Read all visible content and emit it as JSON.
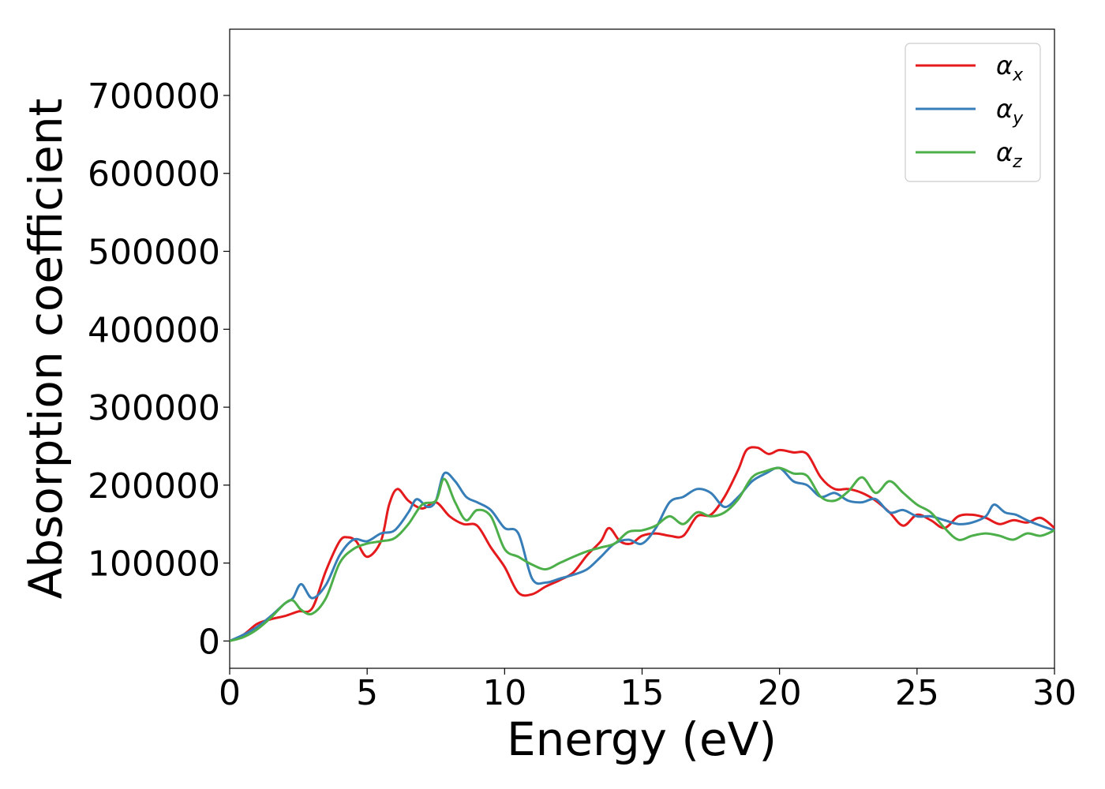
{
  "chart_data": {
    "type": "line",
    "title": "",
    "xlabel": "Energy (eV)",
    "ylabel": "Absorption coefficient",
    "xlim": [
      0,
      30
    ],
    "ylim": [
      -35000,
      785000
    ],
    "xticks": [
      0,
      5,
      10,
      15,
      20,
      25,
      30
    ],
    "xtick_labels": [
      "0",
      "5",
      "10",
      "15",
      "20",
      "25",
      "30"
    ],
    "yticks": [
      0,
      100000,
      200000,
      300000,
      400000,
      500000,
      600000,
      700000
    ],
    "ytick_labels": [
      "0",
      "100000",
      "200000",
      "300000",
      "400000",
      "500000",
      "600000",
      "700000"
    ],
    "grid": false,
    "legend_position": "top-right",
    "series": [
      {
        "name": "α",
        "subscript": "x",
        "color": "#e41a1c",
        "x": [
          0,
          0.5,
          1.0,
          1.5,
          2.0,
          2.5,
          3.0,
          3.5,
          4.0,
          4.3,
          4.6,
          5.0,
          5.5,
          5.8,
          6.1,
          6.5,
          7.0,
          7.5,
          8.0,
          8.5,
          9.0,
          9.5,
          10.0,
          10.5,
          11.0,
          11.5,
          12.0,
          12.5,
          13.0,
          13.5,
          13.8,
          14.2,
          14.6,
          15.0,
          15.5,
          16.0,
          16.5,
          17.0,
          17.5,
          18.0,
          18.5,
          18.8,
          19.2,
          19.6,
          20.0,
          20.5,
          21.0,
          21.5,
          22.0,
          22.5,
          23.0,
          23.5,
          24.0,
          24.5,
          25.0,
          25.5,
          26.0,
          26.5,
          27.0,
          27.5,
          28.0,
          28.5,
          29.0,
          29.5,
          30.0
        ],
        "y": [
          0,
          8000,
          22000,
          28000,
          32000,
          38000,
          42000,
          90000,
          128000,
          133000,
          128000,
          108000,
          128000,
          175000,
          195000,
          180000,
          170000,
          178000,
          160000,
          150000,
          148000,
          120000,
          95000,
          62000,
          60000,
          70000,
          78000,
          88000,
          110000,
          128000,
          145000,
          128000,
          125000,
          135000,
          138000,
          135000,
          135000,
          160000,
          162000,
          185000,
          220000,
          245000,
          248000,
          240000,
          245000,
          242000,
          240000,
          210000,
          195000,
          195000,
          190000,
          180000,
          165000,
          148000,
          162000,
          155000,
          145000,
          160000,
          162000,
          158000,
          150000,
          155000,
          152000,
          158000,
          145000
        ]
      },
      {
        "name": "α",
        "subscript": "y",
        "color": "#377eb8",
        "x": [
          0,
          0.5,
          1.0,
          1.5,
          2.0,
          2.3,
          2.6,
          3.0,
          3.5,
          4.0,
          4.5,
          5.0,
          5.5,
          6.0,
          6.5,
          6.8,
          7.2,
          7.5,
          7.8,
          8.2,
          8.6,
          9.0,
          9.5,
          10.0,
          10.5,
          11.0,
          11.5,
          12.0,
          12.5,
          13.0,
          13.5,
          14.0,
          14.5,
          15.0,
          15.5,
          16.0,
          16.5,
          17.0,
          17.5,
          18.0,
          18.5,
          19.0,
          19.5,
          20.0,
          20.5,
          21.0,
          21.5,
          22.0,
          22.5,
          23.0,
          23.5,
          24.0,
          24.5,
          25.0,
          25.5,
          26.0,
          26.5,
          27.0,
          27.5,
          27.8,
          28.2,
          28.6,
          29.0,
          29.5,
          30.0
        ],
        "y": [
          0,
          8000,
          18000,
          32000,
          48000,
          55000,
          73000,
          55000,
          72000,
          110000,
          130000,
          128000,
          138000,
          142000,
          165000,
          182000,
          172000,
          180000,
          215000,
          205000,
          185000,
          178000,
          168000,
          145000,
          138000,
          80000,
          75000,
          80000,
          85000,
          92000,
          108000,
          125000,
          130000,
          125000,
          145000,
          178000,
          185000,
          195000,
          190000,
          172000,
          185000,
          205000,
          215000,
          222000,
          205000,
          200000,
          185000,
          190000,
          180000,
          178000,
          182000,
          165000,
          168000,
          160000,
          160000,
          155000,
          150000,
          152000,
          160000,
          175000,
          165000,
          162000,
          155000,
          148000,
          142000
        ]
      },
      {
        "name": "α",
        "subscript": "z",
        "color": "#4daf4a",
        "x": [
          0,
          0.5,
          1.0,
          1.5,
          2.0,
          2.3,
          2.6,
          3.0,
          3.5,
          4.0,
          4.5,
          5.0,
          5.5,
          6.0,
          6.5,
          7.0,
          7.5,
          7.8,
          8.2,
          8.6,
          9.0,
          9.5,
          10.0,
          10.5,
          11.0,
          11.5,
          12.0,
          12.5,
          13.0,
          13.5,
          14.0,
          14.5,
          15.0,
          15.5,
          16.0,
          16.5,
          17.0,
          17.5,
          18.0,
          18.5,
          19.0,
          19.5,
          20.0,
          20.5,
          21.0,
          21.5,
          22.0,
          22.5,
          23.0,
          23.5,
          24.0,
          24.5,
          25.0,
          25.5,
          26.0,
          26.5,
          27.0,
          27.5,
          28.0,
          28.5,
          29.0,
          29.5,
          30.0
        ],
        "y": [
          0,
          5000,
          15000,
          30000,
          48000,
          52000,
          40000,
          35000,
          55000,
          100000,
          118000,
          125000,
          128000,
          132000,
          150000,
          175000,
          180000,
          208000,
          178000,
          155000,
          168000,
          160000,
          118000,
          108000,
          98000,
          92000,
          100000,
          108000,
          115000,
          120000,
          125000,
          140000,
          142000,
          148000,
          160000,
          150000,
          165000,
          160000,
          165000,
          182000,
          210000,
          218000,
          222000,
          215000,
          212000,
          185000,
          180000,
          192000,
          210000,
          190000,
          205000,
          190000,
          175000,
          165000,
          145000,
          130000,
          135000,
          138000,
          135000,
          130000,
          138000,
          135000,
          142000
        ]
      }
    ]
  }
}
